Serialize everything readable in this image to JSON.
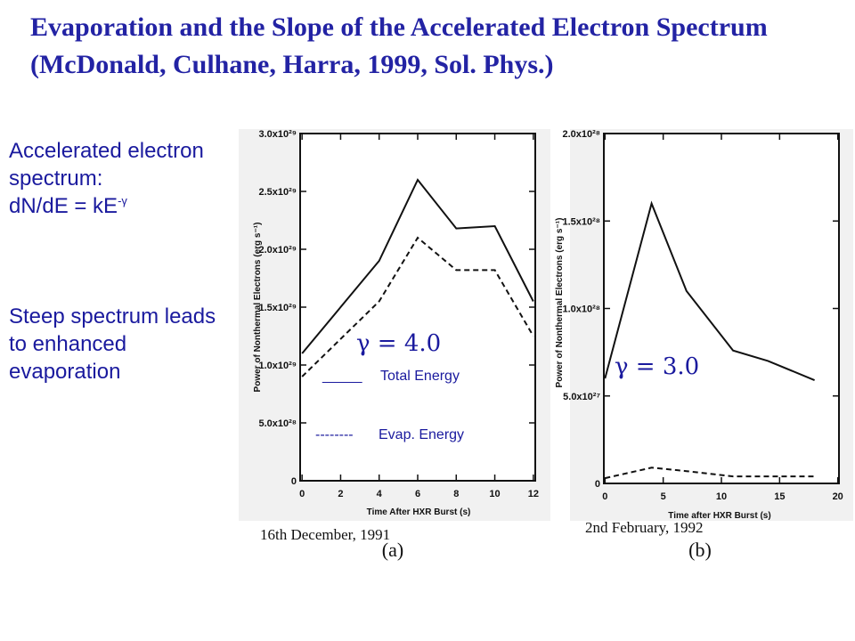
{
  "title": "Evaporation and the Slope of the Accelerated Electron Spectrum (McDonald, Culhane, Harra, 1999, Sol. Phys.)",
  "side_text": {
    "spectrum_line1": "Accelerated electron spectrum:",
    "spectrum_formula": "dN/dE = kE",
    "spectrum_exponent": "-γ",
    "steep": "Steep spectrum leads to enhanced evaporation"
  },
  "legend": {
    "total_swatch": "_____",
    "total_label": "Total Energy",
    "evap_swatch": "--------",
    "evap_label": "Evap. Energy"
  },
  "colors": {
    "title": "#2323a4",
    "annotation": "#1a1a9e",
    "plot": "#111111"
  },
  "chart_data": [
    {
      "type": "line",
      "panel_label": "(a)",
      "date_label": "16th December, 1991",
      "gamma_label": "γ = 4.0",
      "xlabel": "Time After HXR Burst (s)",
      "ylabel": "Power of Nonthermal Electrons (erg s⁻¹)",
      "xlim": [
        -0.1,
        12.1
      ],
      "ylim": [
        0,
        3e+29
      ],
      "x_ticks": [
        "0",
        "2",
        "4",
        "6",
        "8",
        "10",
        "12"
      ],
      "x_tick_values": [
        0,
        2,
        4,
        6,
        8,
        10,
        12
      ],
      "y_ticks": [
        "0",
        "5.0x10²⁸",
        "1.0x10²⁹",
        "1.5x10²⁹",
        "2.0x10²⁹",
        "2.5x10²⁹",
        "3.0x10²⁹"
      ],
      "y_tick_values": [
        0,
        5e+28,
        1e+29,
        1.5e+29,
        2e+29,
        2.5e+29,
        3e+29
      ],
      "series": [
        {
          "style": "solid",
          "x": [
            0,
            4,
            6,
            8,
            10,
            12
          ],
          "y": [
            1.1e+29,
            1.9e+29,
            2.6e+29,
            2.18e+29,
            2.2e+29,
            1.55e+29
          ]
        },
        {
          "style": "dashed",
          "x": [
            0,
            4,
            6,
            8,
            10,
            12
          ],
          "y": [
            9e+28,
            1.55e+29,
            2.1e+29,
            1.82e+29,
            1.82e+29,
            1.25e+29
          ]
        }
      ]
    },
    {
      "type": "line",
      "panel_label": "(b)",
      "date_label": "2nd February, 1992",
      "gamma_label": "γ = 3.0",
      "xlabel": "Time after HXR Burst (s)",
      "ylabel": "Power of Nonthermal Electrons (erg s⁻¹)",
      "xlim": [
        -0.1,
        20.1
      ],
      "ylim": [
        0,
        2e+28
      ],
      "x_ticks": [
        "0",
        "5",
        "10",
        "15",
        "20"
      ],
      "x_tick_values": [
        0,
        5,
        10,
        15,
        20
      ],
      "y_ticks": [
        "0",
        "5.0x10²⁷",
        "1.0x10²⁸",
        "1.5x10²⁸",
        "2.0x10²⁸"
      ],
      "y_tick_values": [
        0,
        5e+27,
        1e+28,
        1.5e+28,
        2e+28
      ],
      "series": [
        {
          "style": "solid",
          "x": [
            0,
            4,
            7,
            11,
            14,
            18
          ],
          "y": [
            6e+27,
            1.6e+28,
            1.1e+28,
            7.6e+27,
            7e+27,
            5.9e+27
          ]
        },
        {
          "style": "dashed",
          "x": [
            0,
            4,
            7,
            11,
            14,
            18
          ],
          "y": [
            3e+26,
            9e+26,
            7e+26,
            4e+26,
            4e+26,
            4e+26
          ]
        }
      ]
    }
  ]
}
